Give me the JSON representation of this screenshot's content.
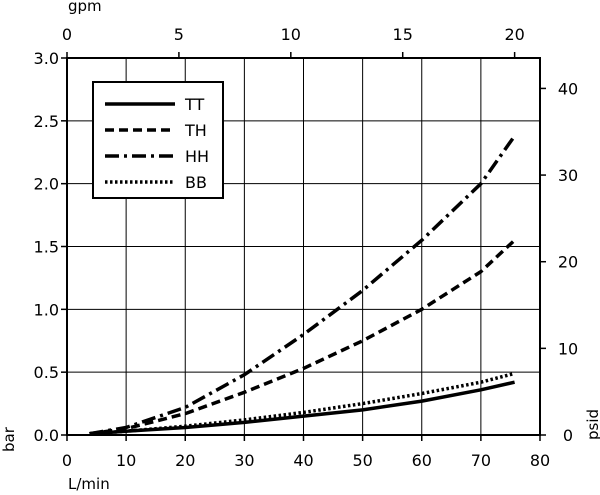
{
  "chart_data": {
    "type": "line",
    "x_bottom": {
      "label": "L/min",
      "ticks": [
        0,
        10,
        20,
        30,
        40,
        50,
        60,
        70,
        80
      ],
      "lim": [
        0,
        80
      ]
    },
    "x_top": {
      "label": "gpm",
      "ticks": [
        0,
        5,
        10,
        15,
        20
      ]
    },
    "y_left": {
      "label": "bar",
      "ticks": [
        "0.0",
        "0.5",
        "1.0",
        "1.5",
        "2.0",
        "2.5",
        "3.0"
      ],
      "lim": [
        0,
        3
      ]
    },
    "y_right": {
      "label": "psid",
      "ticks": [
        0,
        10,
        20,
        30,
        40
      ]
    },
    "grid": true,
    "legend_position": "top-left",
    "series": [
      {
        "name": "TT",
        "style": "solid",
        "points": [
          [
            3.8,
            0.01
          ],
          [
            10,
            0.03
          ],
          [
            20,
            0.06
          ],
          [
            30,
            0.1
          ],
          [
            40,
            0.15
          ],
          [
            50,
            0.2
          ],
          [
            60,
            0.27
          ],
          [
            70,
            0.36
          ],
          [
            75.7,
            0.42
          ]
        ]
      },
      {
        "name": "TH",
        "style": "dashed",
        "points": [
          [
            3.8,
            0.01
          ],
          [
            10,
            0.05
          ],
          [
            20,
            0.17
          ],
          [
            30,
            0.34
          ],
          [
            40,
            0.53
          ],
          [
            50,
            0.75
          ],
          [
            60,
            1.0
          ],
          [
            70,
            1.3
          ],
          [
            75.7,
            1.55
          ]
        ]
      },
      {
        "name": "HH",
        "style": "dashdot",
        "points": [
          [
            3.8,
            0.01
          ],
          [
            10,
            0.06
          ],
          [
            20,
            0.22
          ],
          [
            30,
            0.48
          ],
          [
            40,
            0.8
          ],
          [
            50,
            1.15
          ],
          [
            60,
            1.55
          ],
          [
            70,
            2.0
          ],
          [
            75.7,
            2.38
          ]
        ]
      },
      {
        "name": "BB",
        "style": "dotted",
        "points": [
          [
            3.8,
            0.01
          ],
          [
            10,
            0.03
          ],
          [
            20,
            0.07
          ],
          [
            30,
            0.12
          ],
          [
            40,
            0.18
          ],
          [
            50,
            0.25
          ],
          [
            60,
            0.33
          ],
          [
            70,
            0.42
          ],
          [
            75.7,
            0.49
          ]
        ]
      }
    ]
  }
}
